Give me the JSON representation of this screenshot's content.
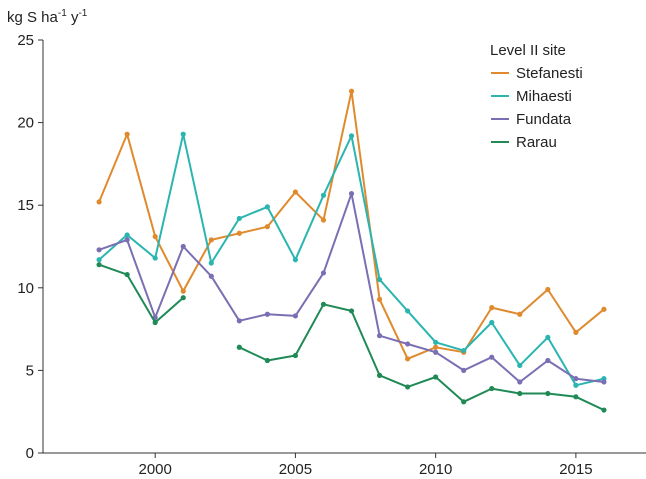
{
  "chart_data": {
    "type": "line",
    "ylabel": "kg S ha-1 y-1",
    "ylabel_parts": {
      "base": "kg S ha",
      "exp1": "-1",
      "mid": " y",
      "exp2": "-1"
    },
    "xlim": [
      1996,
      2017.5
    ],
    "ylim": [
      0,
      25
    ],
    "xticks": [
      2000,
      2005,
      2010,
      2015
    ],
    "yticks": [
      0,
      5,
      10,
      15,
      20,
      25
    ],
    "grid": false,
    "legend": {
      "title": "Level II site",
      "placement": "top-right"
    },
    "x": [
      1998,
      1999,
      2000,
      2001,
      2002,
      2003,
      2004,
      2005,
      2006,
      2007,
      2008,
      2009,
      2010,
      2011,
      2012,
      2013,
      2014,
      2015,
      2016
    ],
    "series": [
      {
        "name": "Stefanesti",
        "color": "#e08a2e",
        "values": [
          15.2,
          19.3,
          13.1,
          9.8,
          12.9,
          13.3,
          13.7,
          15.8,
          14.1,
          21.9,
          9.3,
          5.7,
          6.4,
          6.1,
          8.8,
          8.4,
          9.9,
          7.3,
          8.7
        ]
      },
      {
        "name": "Mihaesti",
        "color": "#2ab5b1",
        "values": [
          11.7,
          13.2,
          11.8,
          19.3,
          11.5,
          14.2,
          14.9,
          11.7,
          15.6,
          19.2,
          10.5,
          8.6,
          6.7,
          6.2,
          7.9,
          5.3,
          7.0,
          4.1,
          4.5
        ]
      },
      {
        "name": "Fundata",
        "color": "#7b6fb3",
        "values": [
          12.3,
          12.9,
          8.2,
          12.5,
          10.7,
          8.0,
          8.4,
          8.3,
          10.9,
          15.7,
          7.1,
          6.6,
          6.1,
          5.0,
          5.8,
          4.3,
          5.6,
          4.5,
          4.3
        ]
      },
      {
        "name": "Rarau",
        "color": "#1f8a55",
        "values": [
          11.4,
          10.8,
          7.9,
          9.4,
          null,
          6.4,
          5.6,
          5.9,
          9.0,
          8.6,
          4.7,
          4.0,
          4.6,
          3.1,
          3.9,
          3.6,
          3.6,
          3.4,
          2.6
        ]
      }
    ]
  }
}
